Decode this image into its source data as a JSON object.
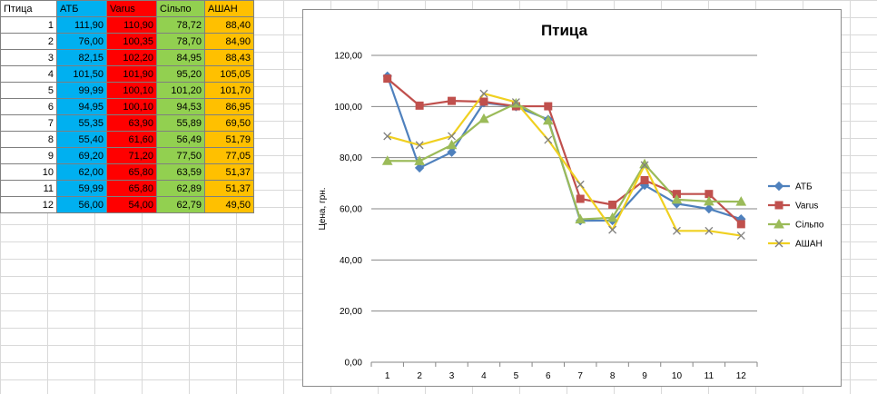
{
  "table": {
    "header": [
      "Птица",
      "АТБ",
      "Varus",
      "Сільпо",
      "АШАН"
    ],
    "header_colors": [
      "#ffffff",
      "#00b0f0",
      "#ff0000",
      "#92d050",
      "#ffc000"
    ],
    "rows": [
      [
        "1",
        "111,90",
        "110,90",
        "78,72",
        "88,40"
      ],
      [
        "2",
        "76,00",
        "100,35",
        "78,70",
        "84,90"
      ],
      [
        "3",
        "82,15",
        "102,20",
        "84,95",
        "88,43"
      ],
      [
        "4",
        "101,50",
        "101,90",
        "95,20",
        "105,05"
      ],
      [
        "5",
        "99,99",
        "100,10",
        "101,20",
        "101,70"
      ],
      [
        "6",
        "94,95",
        "100,10",
        "94,53",
        "86,95"
      ],
      [
        "7",
        "55,35",
        "63,90",
        "55,89",
        "69,50"
      ],
      [
        "8",
        "55,40",
        "61,60",
        "56,49",
        "51,79"
      ],
      [
        "9",
        "69,20",
        "71,20",
        "77,50",
        "77,05"
      ],
      [
        "10",
        "62,00",
        "65,80",
        "63,59",
        "51,37"
      ],
      [
        "11",
        "59,99",
        "65,80",
        "62,89",
        "51,37"
      ],
      [
        "12",
        "56,00",
        "54,00",
        "62,79",
        "49,50"
      ]
    ]
  },
  "chart_data": {
    "type": "line",
    "title": "Птица",
    "ylabel": "Цена, грн.",
    "xlabel": "",
    "x": [
      "1",
      "2",
      "3",
      "4",
      "5",
      "6",
      "7",
      "8",
      "9",
      "10",
      "11",
      "12"
    ],
    "ylim": [
      0,
      120
    ],
    "yticks": [
      "0,00",
      "20,00",
      "40,00",
      "60,00",
      "80,00",
      "100,00",
      "120,00"
    ],
    "grid": "horizontal",
    "legend_position": "right",
    "series": [
      {
        "name": "АТБ",
        "color": "#4f81bd",
        "marker": "diamond",
        "values": [
          111.9,
          76.0,
          82.15,
          101.5,
          99.99,
          94.95,
          55.35,
          55.4,
          69.2,
          62.0,
          59.99,
          56.0
        ]
      },
      {
        "name": "Varus",
        "color": "#c0504d",
        "marker": "square",
        "values": [
          110.9,
          100.35,
          102.2,
          101.9,
          100.1,
          100.1,
          63.9,
          61.6,
          71.2,
          65.8,
          65.8,
          54.0
        ]
      },
      {
        "name": "Сільпо",
        "color": "#9bbb59",
        "marker": "triangle",
        "values": [
          78.72,
          78.7,
          84.95,
          95.2,
          101.2,
          94.53,
          55.89,
          56.49,
          77.5,
          63.59,
          62.89,
          62.79
        ]
      },
      {
        "name": "АШАН",
        "color": "#f0d020",
        "marker": "x",
        "values": [
          88.4,
          84.9,
          88.43,
          105.05,
          101.7,
          86.95,
          69.5,
          51.79,
          77.05,
          51.37,
          51.37,
          49.5
        ]
      }
    ]
  }
}
